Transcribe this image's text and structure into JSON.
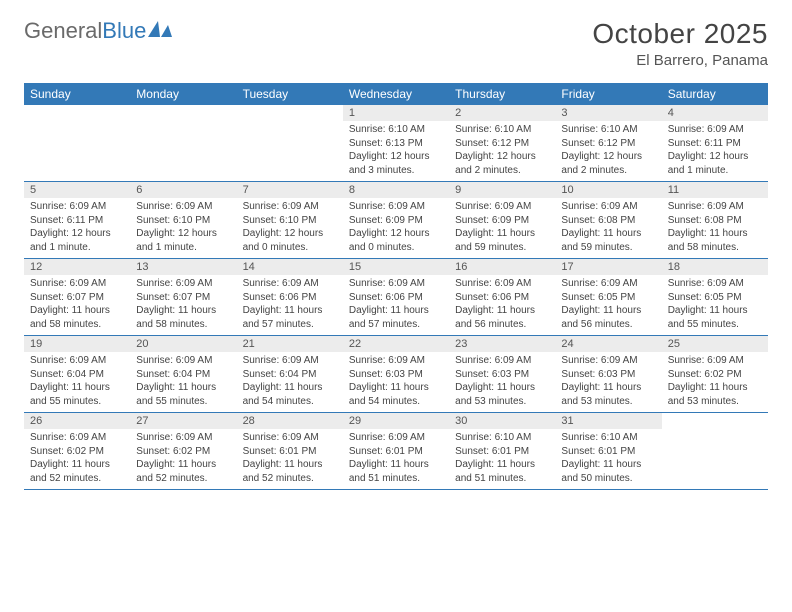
{
  "logo": {
    "text1": "General",
    "text2": "Blue"
  },
  "title": "October 2025",
  "location": "El Barrero, Panama",
  "weekdays": [
    "Sunday",
    "Monday",
    "Tuesday",
    "Wednesday",
    "Thursday",
    "Friday",
    "Saturday"
  ],
  "colors": {
    "header_bg": "#3379b7",
    "daynum_bg": "#ececec",
    "text": "#444444"
  },
  "weeks": [
    [
      {
        "n": "",
        "sr": "",
        "ss": "",
        "dl": ""
      },
      {
        "n": "",
        "sr": "",
        "ss": "",
        "dl": ""
      },
      {
        "n": "",
        "sr": "",
        "ss": "",
        "dl": ""
      },
      {
        "n": "1",
        "sr": "Sunrise: 6:10 AM",
        "ss": "Sunset: 6:13 PM",
        "dl": "Daylight: 12 hours and 3 minutes."
      },
      {
        "n": "2",
        "sr": "Sunrise: 6:10 AM",
        "ss": "Sunset: 6:12 PM",
        "dl": "Daylight: 12 hours and 2 minutes."
      },
      {
        "n": "3",
        "sr": "Sunrise: 6:10 AM",
        "ss": "Sunset: 6:12 PM",
        "dl": "Daylight: 12 hours and 2 minutes."
      },
      {
        "n": "4",
        "sr": "Sunrise: 6:09 AM",
        "ss": "Sunset: 6:11 PM",
        "dl": "Daylight: 12 hours and 1 minute."
      }
    ],
    [
      {
        "n": "5",
        "sr": "Sunrise: 6:09 AM",
        "ss": "Sunset: 6:11 PM",
        "dl": "Daylight: 12 hours and 1 minute."
      },
      {
        "n": "6",
        "sr": "Sunrise: 6:09 AM",
        "ss": "Sunset: 6:10 PM",
        "dl": "Daylight: 12 hours and 1 minute."
      },
      {
        "n": "7",
        "sr": "Sunrise: 6:09 AM",
        "ss": "Sunset: 6:10 PM",
        "dl": "Daylight: 12 hours and 0 minutes."
      },
      {
        "n": "8",
        "sr": "Sunrise: 6:09 AM",
        "ss": "Sunset: 6:09 PM",
        "dl": "Daylight: 12 hours and 0 minutes."
      },
      {
        "n": "9",
        "sr": "Sunrise: 6:09 AM",
        "ss": "Sunset: 6:09 PM",
        "dl": "Daylight: 11 hours and 59 minutes."
      },
      {
        "n": "10",
        "sr": "Sunrise: 6:09 AM",
        "ss": "Sunset: 6:08 PM",
        "dl": "Daylight: 11 hours and 59 minutes."
      },
      {
        "n": "11",
        "sr": "Sunrise: 6:09 AM",
        "ss": "Sunset: 6:08 PM",
        "dl": "Daylight: 11 hours and 58 minutes."
      }
    ],
    [
      {
        "n": "12",
        "sr": "Sunrise: 6:09 AM",
        "ss": "Sunset: 6:07 PM",
        "dl": "Daylight: 11 hours and 58 minutes."
      },
      {
        "n": "13",
        "sr": "Sunrise: 6:09 AM",
        "ss": "Sunset: 6:07 PM",
        "dl": "Daylight: 11 hours and 58 minutes."
      },
      {
        "n": "14",
        "sr": "Sunrise: 6:09 AM",
        "ss": "Sunset: 6:06 PM",
        "dl": "Daylight: 11 hours and 57 minutes."
      },
      {
        "n": "15",
        "sr": "Sunrise: 6:09 AM",
        "ss": "Sunset: 6:06 PM",
        "dl": "Daylight: 11 hours and 57 minutes."
      },
      {
        "n": "16",
        "sr": "Sunrise: 6:09 AM",
        "ss": "Sunset: 6:06 PM",
        "dl": "Daylight: 11 hours and 56 minutes."
      },
      {
        "n": "17",
        "sr": "Sunrise: 6:09 AM",
        "ss": "Sunset: 6:05 PM",
        "dl": "Daylight: 11 hours and 56 minutes."
      },
      {
        "n": "18",
        "sr": "Sunrise: 6:09 AM",
        "ss": "Sunset: 6:05 PM",
        "dl": "Daylight: 11 hours and 55 minutes."
      }
    ],
    [
      {
        "n": "19",
        "sr": "Sunrise: 6:09 AM",
        "ss": "Sunset: 6:04 PM",
        "dl": "Daylight: 11 hours and 55 minutes."
      },
      {
        "n": "20",
        "sr": "Sunrise: 6:09 AM",
        "ss": "Sunset: 6:04 PM",
        "dl": "Daylight: 11 hours and 55 minutes."
      },
      {
        "n": "21",
        "sr": "Sunrise: 6:09 AM",
        "ss": "Sunset: 6:04 PM",
        "dl": "Daylight: 11 hours and 54 minutes."
      },
      {
        "n": "22",
        "sr": "Sunrise: 6:09 AM",
        "ss": "Sunset: 6:03 PM",
        "dl": "Daylight: 11 hours and 54 minutes."
      },
      {
        "n": "23",
        "sr": "Sunrise: 6:09 AM",
        "ss": "Sunset: 6:03 PM",
        "dl": "Daylight: 11 hours and 53 minutes."
      },
      {
        "n": "24",
        "sr": "Sunrise: 6:09 AM",
        "ss": "Sunset: 6:03 PM",
        "dl": "Daylight: 11 hours and 53 minutes."
      },
      {
        "n": "25",
        "sr": "Sunrise: 6:09 AM",
        "ss": "Sunset: 6:02 PM",
        "dl": "Daylight: 11 hours and 53 minutes."
      }
    ],
    [
      {
        "n": "26",
        "sr": "Sunrise: 6:09 AM",
        "ss": "Sunset: 6:02 PM",
        "dl": "Daylight: 11 hours and 52 minutes."
      },
      {
        "n": "27",
        "sr": "Sunrise: 6:09 AM",
        "ss": "Sunset: 6:02 PM",
        "dl": "Daylight: 11 hours and 52 minutes."
      },
      {
        "n": "28",
        "sr": "Sunrise: 6:09 AM",
        "ss": "Sunset: 6:01 PM",
        "dl": "Daylight: 11 hours and 52 minutes."
      },
      {
        "n": "29",
        "sr": "Sunrise: 6:09 AM",
        "ss": "Sunset: 6:01 PM",
        "dl": "Daylight: 11 hours and 51 minutes."
      },
      {
        "n": "30",
        "sr": "Sunrise: 6:10 AM",
        "ss": "Sunset: 6:01 PM",
        "dl": "Daylight: 11 hours and 51 minutes."
      },
      {
        "n": "31",
        "sr": "Sunrise: 6:10 AM",
        "ss": "Sunset: 6:01 PM",
        "dl": "Daylight: 11 hours and 50 minutes."
      },
      {
        "n": "",
        "sr": "",
        "ss": "",
        "dl": ""
      }
    ]
  ]
}
